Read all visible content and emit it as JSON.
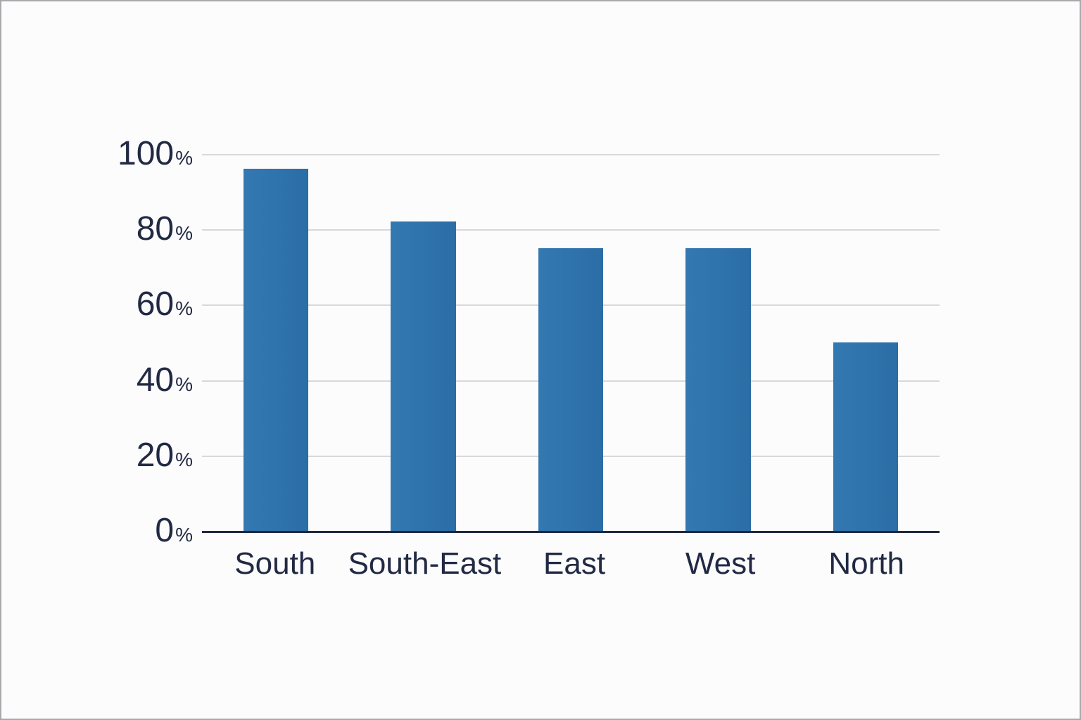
{
  "window": {
    "background_color": "#FCFCFD",
    "border_color": "#A8A8AD"
  },
  "chart_data": {
    "type": "bar",
    "title": "",
    "xlabel": "",
    "ylabel": "",
    "categories": [
      "South",
      "South-East",
      "East",
      "West",
      "North"
    ],
    "values": [
      96,
      82,
      75,
      75,
      50
    ],
    "value_unit": "%",
    "ylim": [
      0,
      100
    ],
    "y_ticks": [
      100,
      80,
      60,
      40,
      20,
      0
    ],
    "y_tick_suffix": "%",
    "grid": "horizontal",
    "legend_position": "none",
    "bar_color": "#2F73AD",
    "axis_color": "#202740",
    "gridline_color": "#D8D8DB",
    "label_color": "#212943"
  }
}
